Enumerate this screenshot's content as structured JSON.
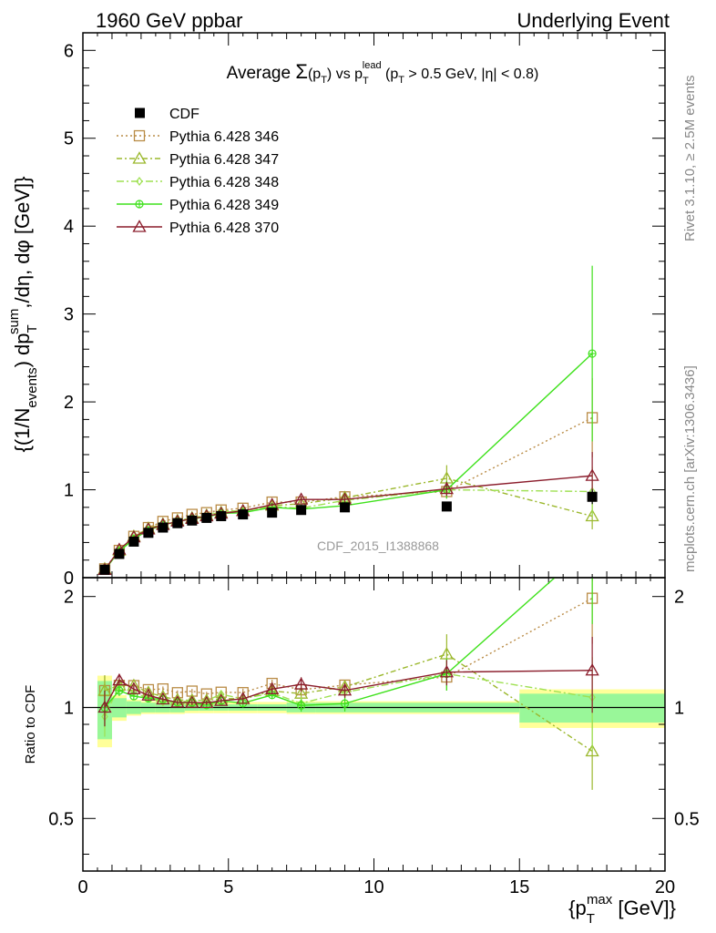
{
  "header": {
    "left": "1960 GeV ppbar",
    "right": "Underlying Event"
  },
  "side": {
    "rivet": "Rivet 3.1.10, ≥ 2.5M events",
    "mcplots": "mcplots.cern.ch [arXiv:1306.3436]"
  },
  "chart_data": {
    "type": "scatter",
    "title_parts": {
      "t1": "Average ",
      "sigma": "Σ",
      "t2": "(p",
      "t3": ") vs p",
      "sup": "lead",
      "t4": " (p",
      "t5": " > 0.5 GeV, |η| < 0.8)",
      "sub": "T"
    },
    "watermark": "CDF_2015_I1388868",
    "xlabel": {
      "main": "{p",
      "sup": "max",
      "sub": "T",
      "rest": " [GeV]}"
    },
    "ylabel": {
      "p1": "{(1/N",
      "sub1": "events",
      "p2": ") dp",
      "sup2": "sum",
      "sub2": "T",
      "p3": ",/dη, dφ [GeV]}"
    },
    "ratio_ylabel": "Ratio to CDF",
    "xlim": [
      0,
      20
    ],
    "ylim_main": [
      0,
      6.2
    ],
    "ylim_ratio": [
      0.36,
      2.25
    ],
    "x_ticks": [
      0,
      5,
      10,
      15,
      20
    ],
    "y_ticks_main": [
      0,
      1,
      2,
      3,
      4,
      5,
      6
    ],
    "y_ticks_ratio": [
      0.5,
      1,
      2
    ],
    "x": [
      0.75,
      1.25,
      1.75,
      2.25,
      2.75,
      3.25,
      3.75,
      4.25,
      4.75,
      5.5,
      6.5,
      7.5,
      9.0,
      12.5,
      17.5
    ],
    "data": {
      "name": "CDF",
      "values": [
        0.09,
        0.27,
        0.41,
        0.51,
        0.57,
        0.62,
        0.65,
        0.68,
        0.7,
        0.72,
        0.74,
        0.77,
        0.8,
        0.81,
        0.92
      ],
      "band_x_edges": [
        0.5,
        1.0,
        1.5,
        2.0,
        2.5,
        3.0,
        3.5,
        4.0,
        4.5,
        5.0,
        6.0,
        7.0,
        8.0,
        10.0,
        15.0,
        20.0
      ],
      "stat_err_rel": [
        0.18,
        0.06,
        0.04,
        0.03,
        0.03,
        0.03,
        0.02,
        0.02,
        0.02,
        0.02,
        0.02,
        0.03,
        0.03,
        0.03,
        0.09
      ],
      "tot_err_rel": [
        0.22,
        0.08,
        0.05,
        0.04,
        0.04,
        0.04,
        0.035,
        0.035,
        0.035,
        0.035,
        0.035,
        0.04,
        0.04,
        0.04,
        0.12
      ]
    },
    "series": [
      {
        "name": "Pythia 6.428 346",
        "color": "#b98b45",
        "dash": "2,3",
        "marker": "square",
        "values": [
          0.1,
          0.31,
          0.47,
          0.57,
          0.64,
          0.68,
          0.72,
          0.74,
          0.77,
          0.79,
          0.86,
          0.86,
          0.92,
          0.98,
          1.82
        ],
        "err": [
          0.01,
          0.01,
          0.01,
          0.01,
          0.01,
          0.01,
          0.01,
          0.01,
          0.01,
          0.02,
          0.02,
          0.03,
          0.03,
          0.08,
          0.45
        ]
      },
      {
        "name": "Pythia 6.428 347",
        "color": "#9bb82d",
        "dash": "6,3,2,3",
        "marker": "triangle",
        "values": [
          0.1,
          0.31,
          0.47,
          0.56,
          0.61,
          0.65,
          0.68,
          0.71,
          0.74,
          0.76,
          0.82,
          0.84,
          0.91,
          1.13,
          0.7
        ],
        "err": [
          0.01,
          0.01,
          0.01,
          0.01,
          0.01,
          0.01,
          0.01,
          0.01,
          0.01,
          0.02,
          0.02,
          0.03,
          0.04,
          0.15,
          0.15
        ]
      },
      {
        "name": "Pythia 6.428 348",
        "color": "#9ee051",
        "dash": "8,3,2,3",
        "marker": "diamond",
        "values": [
          0.085,
          0.31,
          0.45,
          0.54,
          0.59,
          0.64,
          0.68,
          0.71,
          0.76,
          0.76,
          0.81,
          0.79,
          0.88,
          1.0,
          0.98
        ],
        "err": [
          0.01,
          0.01,
          0.01,
          0.01,
          0.01,
          0.01,
          0.01,
          0.01,
          0.01,
          0.02,
          0.02,
          0.03,
          0.04,
          0.1,
          0.28
        ]
      },
      {
        "name": "Pythia 6.428 349",
        "color": "#3fe11c",
        "dash": "",
        "marker": "circleplus",
        "values": [
          0.09,
          0.3,
          0.44,
          0.54,
          0.6,
          0.64,
          0.67,
          0.69,
          0.73,
          0.74,
          0.8,
          0.78,
          0.82,
          1.0,
          2.55
        ],
        "err": [
          0.01,
          0.01,
          0.01,
          0.01,
          0.01,
          0.01,
          0.01,
          0.01,
          0.01,
          0.02,
          0.02,
          0.03,
          0.04,
          0.1,
          1.0
        ]
      },
      {
        "name": "Pythia 6.428 370",
        "color": "#8b1d2c",
        "dash": "",
        "marker": "triangle",
        "values": [
          0.09,
          0.32,
          0.46,
          0.55,
          0.6,
          0.64,
          0.67,
          0.7,
          0.73,
          0.76,
          0.83,
          0.89,
          0.89,
          1.01,
          1.16
        ],
        "err": [
          0.01,
          0.01,
          0.01,
          0.01,
          0.01,
          0.01,
          0.01,
          0.01,
          0.01,
          0.02,
          0.02,
          0.04,
          0.04,
          0.08,
          0.27
        ]
      }
    ]
  }
}
